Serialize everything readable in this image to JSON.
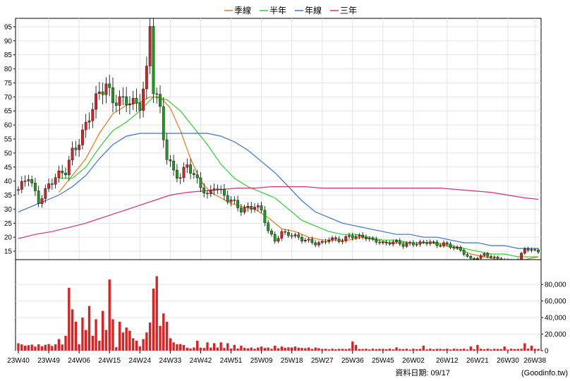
{
  "legend": [
    {
      "label": "季線",
      "color": "#e07a1a"
    },
    {
      "label": "半年",
      "color": "#33cc33"
    },
    {
      "label": "年線",
      "color": "#3b73c9"
    },
    {
      "label": "三年",
      "color": "#d1317a"
    }
  ],
  "footer": {
    "date_label": "資料日期: 09/17",
    "source": "(Goodinfo.tw)"
  },
  "chart_data": [
    {
      "type": "candlestick",
      "title": "",
      "price_ylim": [
        12,
        98
      ],
      "price_ticks": [
        15,
        20,
        25,
        30,
        35,
        40,
        45,
        50,
        55,
        60,
        65,
        70,
        75,
        80,
        85,
        90,
        95
      ],
      "x_tick_labels": [
        "23W40",
        "23W49",
        "24W06",
        "24W15",
        "24W24",
        "24W33",
        "24W42",
        "24W51",
        "25W09",
        "25W18",
        "25W27",
        "25W36",
        "25W45",
        "26W02",
        "26W12",
        "26W21",
        "26W30",
        "26W38"
      ],
      "x_tick_index": [
        0,
        9,
        18,
        27,
        36,
        45,
        54,
        63,
        72,
        81,
        90,
        99,
        108,
        117,
        127,
        136,
        145,
        153
      ],
      "n_weeks": 155,
      "anchors": [
        [
          0,
          37
        ],
        [
          3,
          41
        ],
        [
          6,
          33
        ],
        [
          9,
          39
        ],
        [
          11,
          41
        ],
        [
          14,
          43
        ],
        [
          16,
          51
        ],
        [
          18,
          55
        ],
        [
          20,
          60
        ],
        [
          22,
          65
        ],
        [
          24,
          71
        ],
        [
          26,
          75
        ],
        [
          28,
          70
        ],
        [
          31,
          68
        ],
        [
          34,
          67
        ],
        [
          36,
          68
        ],
        [
          38,
          80
        ],
        [
          39,
          97
        ],
        [
          40,
          73
        ],
        [
          41,
          69
        ],
        [
          42,
          64
        ],
        [
          43,
          55
        ],
        [
          44,
          48
        ],
        [
          46,
          44
        ],
        [
          48,
          42
        ],
        [
          50,
          46
        ],
        [
          52,
          41
        ],
        [
          54,
          38
        ],
        [
          56,
          35
        ],
        [
          58,
          39
        ],
        [
          60,
          36
        ],
        [
          62,
          33
        ],
        [
          64,
          32
        ],
        [
          66,
          30
        ],
        [
          68,
          31
        ],
        [
          70,
          31
        ],
        [
          72,
          29
        ],
        [
          74,
          22
        ],
        [
          76,
          19
        ],
        [
          78,
          22
        ],
        [
          80,
          21
        ],
        [
          82,
          20
        ],
        [
          84,
          19
        ],
        [
          86,
          19
        ],
        [
          88,
          18
        ],
        [
          90,
          18
        ],
        [
          92,
          19
        ],
        [
          94,
          19
        ],
        [
          96,
          19
        ],
        [
          98,
          21
        ],
        [
          100,
          20
        ],
        [
          102,
          20
        ],
        [
          104,
          19
        ],
        [
          106,
          19
        ],
        [
          108,
          18
        ],
        [
          110,
          18
        ],
        [
          112,
          18
        ],
        [
          114,
          17
        ],
        [
          116,
          18
        ],
        [
          118,
          18
        ],
        [
          120,
          18
        ],
        [
          122,
          18
        ],
        [
          124,
          17
        ],
        [
          126,
          18
        ],
        [
          128,
          17
        ],
        [
          130,
          16
        ],
        [
          132,
          14
        ],
        [
          134,
          12
        ],
        [
          136,
          13
        ],
        [
          138,
          14
        ],
        [
          140,
          13
        ],
        [
          142,
          12
        ],
        [
          144,
          12
        ],
        [
          146,
          11
        ],
        [
          148,
          12
        ],
        [
          150,
          16
        ],
        [
          152,
          15
        ],
        [
          154,
          15
        ]
      ],
      "ma_curves": [
        {
          "name": "季線",
          "color": "#e07a1a",
          "points": [
            [
              12,
              36
            ],
            [
              16,
              42
            ],
            [
              20,
              48
            ],
            [
              24,
              57
            ],
            [
              28,
              64
            ],
            [
              32,
              67
            ],
            [
              36,
              68
            ],
            [
              39,
              70
            ],
            [
              42,
              70
            ],
            [
              45,
              66
            ],
            [
              48,
              58
            ],
            [
              51,
              48
            ],
            [
              54,
              40
            ],
            [
              57,
              36
            ],
            [
              60,
              34
            ],
            [
              63,
              32
            ],
            [
              66,
              31
            ],
            [
              70,
              30
            ],
            [
              74,
              27
            ],
            [
              78,
              23
            ],
            [
              82,
              22
            ],
            [
              86,
              20
            ],
            [
              90,
              19
            ],
            [
              94,
              19
            ],
            [
              98,
              19
            ],
            [
              102,
              20
            ],
            [
              106,
              19
            ],
            [
              110,
              18
            ],
            [
              114,
              18
            ],
            [
              118,
              18
            ],
            [
              122,
              18
            ],
            [
              126,
              17
            ],
            [
              130,
              16
            ],
            [
              134,
              14
            ],
            [
              138,
              13
            ],
            [
              142,
              12
            ],
            [
              146,
              12
            ],
            [
              150,
              12
            ],
            [
              154,
              13
            ]
          ]
        },
        {
          "name": "半年",
          "color": "#33cc33",
          "points": [
            [
              12,
              41
            ],
            [
              16,
              41
            ],
            [
              20,
              45
            ],
            [
              24,
              52
            ],
            [
              28,
              58
            ],
            [
              32,
              61
            ],
            [
              36,
              65
            ],
            [
              40,
              70
            ],
            [
              44,
              69
            ],
            [
              48,
              65
            ],
            [
              52,
              59
            ],
            [
              56,
              53
            ],
            [
              60,
              46
            ],
            [
              64,
              41
            ],
            [
              68,
              38
            ],
            [
              72,
              36
            ],
            [
              76,
              34
            ],
            [
              80,
              30
            ],
            [
              84,
              26
            ],
            [
              88,
              24
            ],
            [
              92,
              22
            ],
            [
              96,
              21
            ],
            [
              100,
              21
            ],
            [
              104,
              20
            ],
            [
              108,
              19
            ],
            [
              112,
              19
            ],
            [
              116,
              18
            ],
            [
              120,
              18
            ],
            [
              124,
              18
            ],
            [
              128,
              17
            ],
            [
              132,
              16
            ],
            [
              136,
              15
            ],
            [
              140,
              14
            ],
            [
              144,
              14
            ],
            [
              148,
              13
            ],
            [
              152,
              13
            ],
            [
              154,
              13
            ]
          ]
        },
        {
          "name": "年線",
          "color": "#3b73c9",
          "points": [
            [
              0,
              29
            ],
            [
              4,
              31
            ],
            [
              8,
              33
            ],
            [
              12,
              35
            ],
            [
              16,
              38
            ],
            [
              20,
              42
            ],
            [
              24,
              48
            ],
            [
              28,
              53
            ],
            [
              32,
              56
            ],
            [
              36,
              57
            ],
            [
              40,
              57
            ],
            [
              44,
              57
            ],
            [
              48,
              57
            ],
            [
              52,
              57
            ],
            [
              56,
              57
            ],
            [
              60,
              56
            ],
            [
              64,
              54
            ],
            [
              68,
              51
            ],
            [
              72,
              47
            ],
            [
              76,
              43
            ],
            [
              80,
              38
            ],
            [
              84,
              33
            ],
            [
              88,
              29
            ],
            [
              92,
              27
            ],
            [
              96,
              25
            ],
            [
              100,
              24
            ],
            [
              104,
              23
            ],
            [
              108,
              22
            ],
            [
              112,
              21
            ],
            [
              116,
              21
            ],
            [
              120,
              20
            ],
            [
              124,
              20
            ],
            [
              128,
              19
            ],
            [
              132,
              18
            ],
            [
              136,
              18
            ],
            [
              140,
              17
            ],
            [
              144,
              17
            ],
            [
              148,
              16
            ],
            [
              152,
              16
            ],
            [
              154,
              16
            ]
          ]
        },
        {
          "name": "三年",
          "color": "#d1317a",
          "points": [
            [
              0,
              19.5
            ],
            [
              5,
              21
            ],
            [
              10,
              22
            ],
            [
              15,
              23.5
            ],
            [
              20,
              25
            ],
            [
              25,
              27
            ],
            [
              30,
              29
            ],
            [
              35,
              31
            ],
            [
              40,
              33
            ],
            [
              45,
              35
            ],
            [
              50,
              36
            ],
            [
              55,
              36.5
            ],
            [
              60,
              37
            ],
            [
              65,
              37.5
            ],
            [
              70,
              37.5
            ],
            [
              75,
              38
            ],
            [
              80,
              38
            ],
            [
              85,
              38
            ],
            [
              90,
              37.5
            ],
            [
              95,
              37.5
            ],
            [
              100,
              37.5
            ],
            [
              105,
              37.5
            ],
            [
              110,
              37.5
            ],
            [
              115,
              37.5
            ],
            [
              120,
              37.5
            ],
            [
              125,
              37.5
            ],
            [
              130,
              37
            ],
            [
              135,
              36.5
            ],
            [
              140,
              36
            ],
            [
              145,
              35
            ],
            [
              150,
              34
            ],
            [
              154,
              33.5
            ]
          ]
        }
      ],
      "volume_ylim": [
        0,
        110000
      ],
      "volume_ticks": [
        0,
        20000,
        40000,
        60000,
        80000
      ],
      "volume_tick_labels": [
        "0",
        "20,000",
        "40,000",
        "60,000",
        "80,000"
      ],
      "volume_peaks": [
        [
          0,
          9000
        ],
        [
          9,
          8000
        ],
        [
          12,
          14000
        ],
        [
          14,
          18000
        ],
        [
          15,
          76000
        ],
        [
          16,
          50000
        ],
        [
          17,
          35000
        ],
        [
          19,
          40000
        ],
        [
          20,
          25000
        ],
        [
          21,
          54000
        ],
        [
          22,
          18000
        ],
        [
          23,
          38000
        ],
        [
          24,
          12000
        ],
        [
          25,
          48000
        ],
        [
          26,
          25000
        ],
        [
          27,
          86000
        ],
        [
          28,
          38000
        ],
        [
          30,
          35000
        ],
        [
          31,
          22000
        ],
        [
          32,
          28000
        ],
        [
          33,
          24000
        ],
        [
          34,
          15000
        ],
        [
          35,
          12000
        ],
        [
          37,
          14000
        ],
        [
          38,
          22000
        ],
        [
          39,
          34000
        ],
        [
          40,
          75000
        ],
        [
          41,
          90000
        ],
        [
          42,
          30000
        ],
        [
          43,
          45000
        ],
        [
          44,
          35000
        ],
        [
          45,
          15000
        ],
        [
          46,
          10000
        ],
        [
          48,
          8000
        ],
        [
          53,
          12000
        ],
        [
          56,
          10000
        ],
        [
          58,
          9000
        ],
        [
          60,
          10000
        ],
        [
          62,
          9000
        ],
        [
          64,
          7000
        ],
        [
          66,
          6000
        ],
        [
          72,
          5000
        ],
        [
          76,
          6000
        ],
        [
          78,
          5000
        ],
        [
          80,
          4000
        ],
        [
          82,
          5000
        ],
        [
          99,
          11000
        ],
        [
          100,
          7000
        ],
        [
          112,
          4000
        ],
        [
          120,
          6000
        ],
        [
          134,
          5000
        ],
        [
          136,
          7000
        ],
        [
          144,
          5000
        ],
        [
          150,
          9000
        ],
        [
          152,
          6000
        ]
      ]
    }
  ]
}
